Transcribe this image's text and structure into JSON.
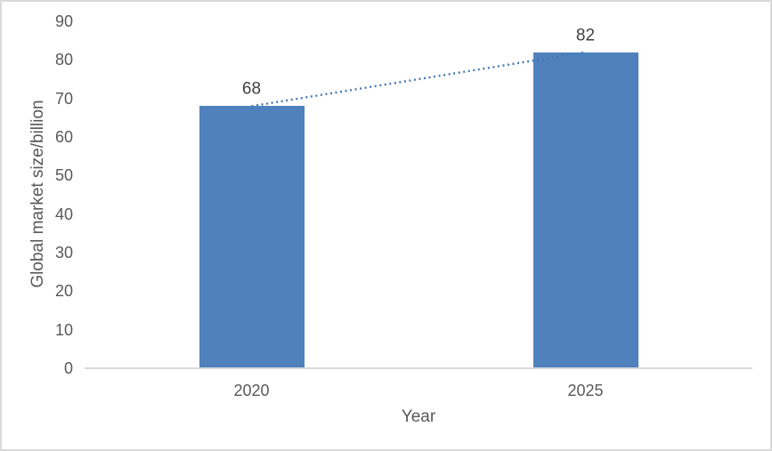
{
  "chart_data": {
    "type": "bar",
    "title": "",
    "categories": [
      "2020",
      "2025"
    ],
    "values": [
      68,
      82
    ],
    "data_labels": [
      "68",
      "82"
    ],
    "xlabel": "Year",
    "ylabel": "Global market size/billion",
    "ylim": [
      0,
      90
    ],
    "yticks": [
      0,
      10,
      20,
      30,
      40,
      50,
      60,
      70,
      80,
      90
    ],
    "grid": false,
    "legend": "none",
    "trendline": {
      "style": "dotted",
      "from": {
        "category": "2020",
        "value": 68
      },
      "to": {
        "category": "2025",
        "value": 82
      }
    },
    "colors": {
      "bar": "#4f81bd",
      "trendline": "#4878b4",
      "axis_line": "#d9d9d9",
      "tick_label": "#595959",
      "axis_title": "#595959",
      "data_label": "#404040",
      "background": "#ffffff",
      "border": "#d9d9d9"
    }
  }
}
